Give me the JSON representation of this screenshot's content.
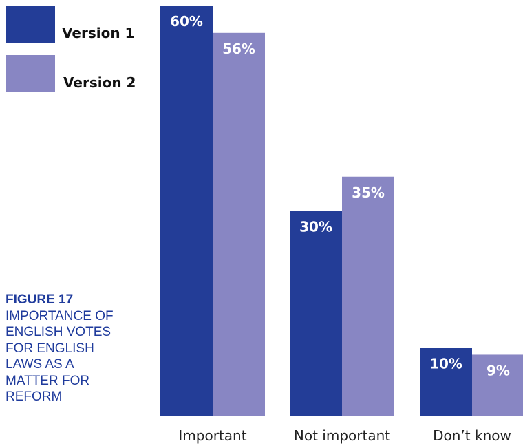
{
  "colors": {
    "version1": "#233d97",
    "version2": "#8886c3",
    "caption": "#1f3b9c"
  },
  "legend": [
    {
      "label": "Version 1"
    },
    {
      "label": "Version 2"
    }
  ],
  "caption": {
    "figure_number": "FIGURE 17",
    "title": "IMPORTANCE OF ENGLISH VOTES FOR ENGLISH LAWS AS A MATTER FOR REFORM"
  },
  "chart_data": {
    "type": "bar",
    "title": "IMPORTANCE OF ENGLISH VOTES FOR ENGLISH LAWS AS A MATTER FOR REFORM",
    "categories": [
      "Important",
      "Not important",
      "Don’t know"
    ],
    "series": [
      {
        "name": "Version 1",
        "values": [
          60,
          30,
          10
        ],
        "labels": [
          "60%",
          "30%",
          "10%"
        ]
      },
      {
        "name": "Version 2",
        "values": [
          56,
          35,
          9
        ],
        "labels": [
          "56%",
          "35%",
          "9%"
        ]
      }
    ],
    "ylim": [
      0,
      60
    ],
    "grid": false,
    "legend_position": "top-left"
  }
}
